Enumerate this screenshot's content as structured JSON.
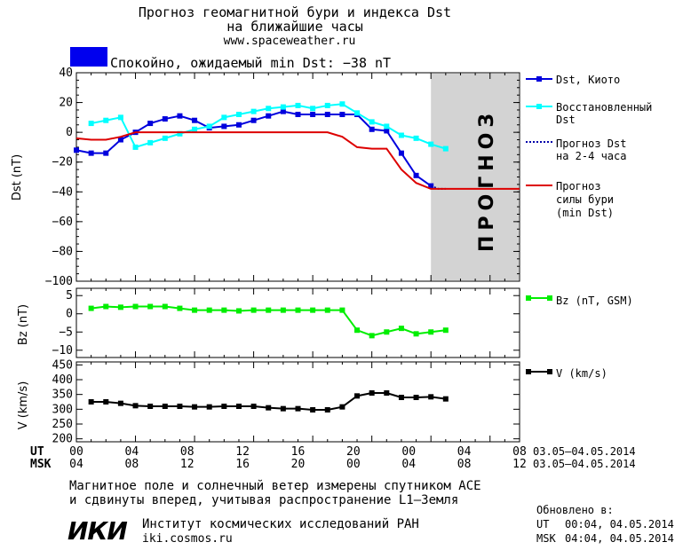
{
  "header": {
    "title_line1": "Прогноз геомагнитной бури и индекса Dst",
    "title_line2": "на ближайшие часы",
    "website": "www.spaceweather.ru",
    "status_text": "Спокойно, ожидаемый min Dst: −38 nT",
    "status_color": "#0000ee"
  },
  "footer": {
    "note_line1": "Магнитное поле и солнечный ветер измерены спутником ACE",
    "note_line2": "и сдвинуты вперед, учитывая распространение L1–Земля",
    "logo_text": "ИКИ",
    "institute_name": "Институт космических исследований РАН",
    "institute_site": "iki.cosmos.ru",
    "updated_label": "Обновлено в:",
    "updated_ut_label": "UT",
    "updated_ut_value": "00:04, 04.05.2014",
    "updated_msk_label": "MSK",
    "updated_msk_value": "04:04, 04.05.2014"
  },
  "axis": {
    "ut_label": "UT",
    "msk_label": "MSK",
    "ut_ticks": [
      "00",
      "04",
      "08",
      "12",
      "16",
      "20",
      "00",
      "04",
      "08"
    ],
    "msk_ticks": [
      "04",
      "08",
      "12",
      "16",
      "20",
      "00",
      "04",
      "08",
      "12"
    ],
    "ut_dates": "03.05–04.05.2014",
    "msk_dates": "03.05–04.05.2014"
  },
  "chart_data": [
    {
      "type": "line",
      "name": "dst-panel",
      "ylabel": "Dst (nT)",
      "ylim": [
        -100,
        40
      ],
      "yticks": [
        40,
        20,
        0,
        -20,
        -40,
        -60,
        -80,
        -100
      ],
      "xlim": [
        0,
        30
      ],
      "forecast_label": "ПРОГНОЗ",
      "forecast_band": [
        24,
        30
      ],
      "series": [
        {
          "name": "Dst, Киото",
          "color": "#0000dd",
          "marker": "square",
          "x": [
            0,
            1,
            2,
            3,
            4,
            5,
            6,
            7,
            8,
            9,
            10,
            11,
            12,
            13,
            14,
            15,
            16,
            17,
            18,
            19,
            20,
            21,
            22,
            23,
            24
          ],
          "y": [
            -12,
            -14,
            -14,
            -5,
            0,
            6,
            9,
            11,
            8,
            3,
            4,
            5,
            8,
            11,
            14,
            12,
            12,
            12,
            12,
            12,
            2,
            1,
            -14,
            -29,
            -36
          ]
        },
        {
          "name": "Восстановленный Dst",
          "color": "#00ffff",
          "marker": "square",
          "x": [
            1,
            2,
            3,
            4,
            5,
            6,
            7,
            8,
            9,
            10,
            11,
            12,
            13,
            14,
            15,
            16,
            17,
            18,
            19,
            20,
            21,
            22,
            23,
            24,
            25
          ],
          "y": [
            6,
            8,
            10,
            -10,
            -7,
            -4,
            -1,
            2,
            4,
            10,
            12,
            14,
            16,
            17,
            18,
            16,
            18,
            19,
            13,
            7,
            4,
            -2,
            -4,
            -8,
            -11
          ]
        },
        {
          "name": "Прогноз Dst на 2-4 часа",
          "color": "#0000aa",
          "dashed": true,
          "x": [
            24,
            24.5,
            25
          ],
          "y": [
            -36,
            -38,
            -38
          ]
        },
        {
          "name": "Прогноз силы бури (min Dst)",
          "color": "#dd0000",
          "x": [
            0,
            1,
            2,
            3,
            4,
            5,
            6,
            7,
            8,
            9,
            10,
            11,
            12,
            13,
            14,
            15,
            16,
            17,
            18,
            19,
            20,
            21,
            22,
            23,
            24,
            25,
            26,
            27,
            28,
            29,
            30
          ],
          "y": [
            -4,
            -5,
            -5,
            -3,
            0,
            0,
            0,
            0,
            0,
            0,
            0,
            0,
            0,
            0,
            0,
            0,
            0,
            0,
            -3,
            -10,
            -11,
            -11,
            -25,
            -34,
            -38,
            -38,
            -38,
            -38,
            -38,
            -38,
            -38
          ]
        }
      ]
    },
    {
      "type": "line",
      "name": "bz-panel",
      "ylabel": "Bz (nT)",
      "ylim": [
        -12,
        7
      ],
      "yticks": [
        5,
        0,
        -5,
        -10
      ],
      "xlim": [
        0,
        30
      ],
      "series": [
        {
          "name": "Bz (nT, GSM)",
          "color": "#00ee00",
          "marker": "square",
          "x": [
            1,
            2,
            3,
            4,
            5,
            6,
            7,
            8,
            9,
            10,
            11,
            12,
            13,
            14,
            15,
            16,
            17,
            18,
            19,
            20,
            21,
            22,
            23,
            24,
            25
          ],
          "y": [
            1.5,
            2,
            1.8,
            2,
            2,
            2,
            1.5,
            1,
            1,
            1,
            0.8,
            1,
            1,
            1,
            1,
            1,
            1,
            1,
            -4.5,
            -6,
            -5,
            -4,
            -5.5,
            -5,
            -4.5
          ]
        }
      ]
    },
    {
      "type": "line",
      "name": "v-panel",
      "ylabel": "V (km/s)",
      "ylim": [
        190,
        460
      ],
      "yticks": [
        450,
        400,
        350,
        300,
        250,
        200
      ],
      "xlim": [
        0,
        30
      ],
      "series": [
        {
          "name": "V (km/s)",
          "color": "#000000",
          "marker": "square",
          "x": [
            1,
            2,
            3,
            4,
            5,
            6,
            7,
            8,
            9,
            10,
            11,
            12,
            13,
            14,
            15,
            16,
            17,
            18,
            19,
            20,
            21,
            22,
            23,
            24,
            25
          ],
          "y": [
            325,
            325,
            320,
            312,
            310,
            310,
            310,
            308,
            308,
            310,
            310,
            310,
            305,
            302,
            302,
            298,
            298,
            308,
            345,
            355,
            355,
            340,
            340,
            342,
            335
          ]
        }
      ]
    }
  ]
}
